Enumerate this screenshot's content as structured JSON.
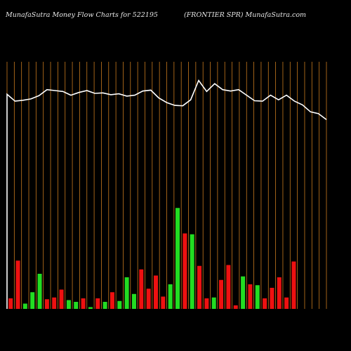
{
  "header": {
    "site_title": "MunafaSutra  Money Flow  Charts for 522195",
    "company": "(FRONTIER SPR) MunafaSutra.com"
  },
  "colors": {
    "background": "#000000",
    "gridline": "#c87a1e",
    "up_bar": "#22dd22",
    "down_bar": "#ee1111",
    "price_line": "#ffffff"
  },
  "chart_data": {
    "type": "bar",
    "title": "",
    "categories": [
      "",
      "",
      "",
      "",
      "",
      "",
      "",
      "",
      "",
      "",
      "",
      "",
      "",
      "",
      "",
      "",
      "",
      "",
      "",
      "",
      "",
      "",
      "",
      "",
      "",
      "",
      "",
      "",
      "",
      "",
      "",
      "",
      "",
      "",
      "",
      "",
      "",
      "",
      "",
      "",
      "",
      "",
      "",
      "",
      ""
    ],
    "bar_values": [
      12,
      55,
      6,
      19,
      40,
      11,
      13,
      22,
      10,
      8,
      12,
      2,
      12,
      8,
      19,
      9,
      36,
      17,
      45,
      23,
      38,
      14,
      28,
      115,
      86,
      85,
      49,
      12,
      13,
      33,
      50,
      4,
      37,
      28,
      27,
      12,
      24,
      36,
      13,
      54
    ],
    "bar_direction": [
      "down",
      "down",
      "up",
      "up",
      "up",
      "down",
      "down",
      "down",
      "up",
      "up",
      "down",
      "up",
      "down",
      "up",
      "down",
      "up",
      "up",
      "up",
      "down",
      "down",
      "down",
      "down",
      "up",
      "up",
      "down",
      "up",
      "down",
      "down",
      "up",
      "down",
      "down",
      "down",
      "up",
      "down",
      "up",
      "down",
      "down",
      "down",
      "down",
      "down"
    ],
    "price_line": [
      100,
      85,
      87,
      90,
      97,
      110,
      108,
      106,
      98,
      104,
      108,
      102,
      103,
      99,
      101,
      96,
      98,
      107,
      109,
      92,
      82,
      76,
      75,
      88,
      130,
      106,
      123,
      110,
      107,
      110,
      98,
      86,
      85,
      98,
      88,
      98,
      85,
      77,
      62,
      58,
      45
    ],
    "bar_max": 120,
    "price_min": 0,
    "price_max": 140,
    "grid": true
  }
}
